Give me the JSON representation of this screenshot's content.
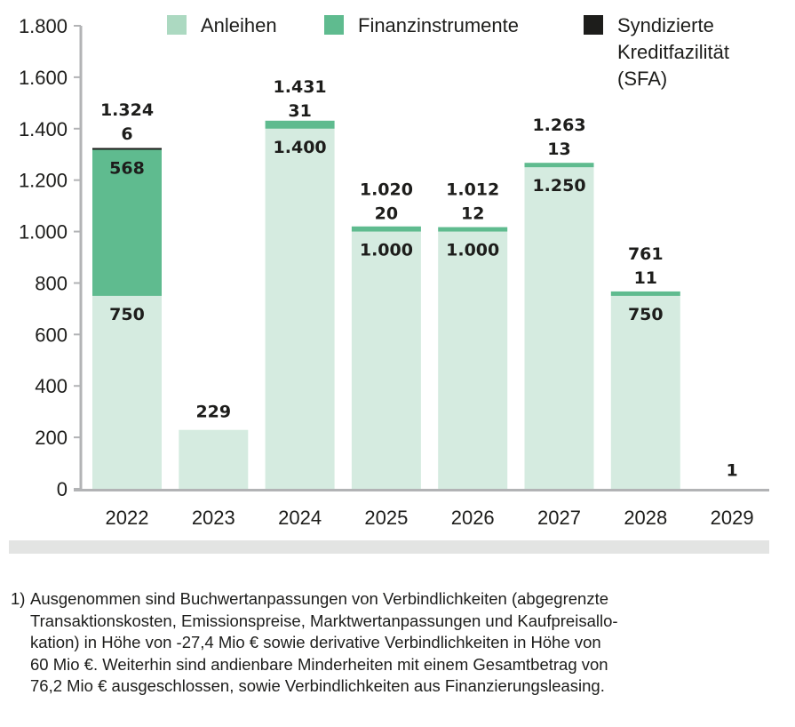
{
  "chart_data": {
    "type": "bar",
    "stacked": true,
    "title": "",
    "xlabel": "",
    "ylabel": "",
    "ylim": [
      0,
      1800
    ],
    "yticks": [
      0,
      200,
      400,
      600,
      800,
      1000,
      1200,
      1400,
      1600,
      1800
    ],
    "ytick_labels": [
      "0",
      "200",
      "400",
      "600",
      "800",
      "1.000",
      "1.200",
      "1.400",
      "1.600",
      "1.800"
    ],
    "grid": false,
    "legend_position": "top-right",
    "categories": [
      "2022",
      "2023",
      "2024",
      "2025",
      "2026",
      "2027",
      "2028",
      "2029"
    ],
    "series": [
      {
        "name": "Anleihen",
        "color": "#d5ebe0",
        "legend_color": "#acd9c1",
        "values": [
          750,
          229,
          1400,
          1000,
          1000,
          1250,
          750,
          0
        ],
        "labels": [
          "750",
          "",
          "1.400",
          "1.000",
          "1.000",
          "1.250",
          "750",
          ""
        ]
      },
      {
        "name": "Finanzinstrumente",
        "color": "#5fbb8f",
        "values": [
          568,
          0,
          31,
          20,
          12,
          13,
          11,
          0
        ],
        "labels": [
          "568",
          "",
          "31",
          "20",
          "12",
          "13",
          "11",
          ""
        ]
      },
      {
        "name": "Syndizierte Kreditfazilität (SFA)",
        "legend_lines": [
          "Syndizierte",
          "Kreditfazilität",
          "(SFA)"
        ],
        "color": "#1d1d1b",
        "values": [
          6,
          0,
          0,
          0,
          0,
          0,
          0,
          1
        ],
        "labels": [
          "6",
          "",
          "",
          "",
          "",
          "",
          "",
          ""
        ]
      }
    ],
    "totals": [
      1324,
      229,
      1431,
      1020,
      1012,
      1263,
      761,
      1
    ],
    "total_labels": [
      "1.324",
      "229",
      "1.431",
      "1.020",
      "1.012",
      "1.263",
      "761",
      "1"
    ]
  },
  "footnote": {
    "number": "1)",
    "lines": [
      "Ausgenommen sind Buchwertanpassungen von Verbindlichkeiten (abgegrenzte",
      "Transaktionskosten, Emissionspreise, Marktwertanpassungen und Kaufpreisallo-",
      "kation) in Höhe von -27,4 Mio € sowie derivative Verbindlichkeiten in Höhe von",
      "60 Mio €. Weiterhin sind andienbare Minderheiten mit einem Gesamtbetrag von",
      "76,2 Mio € ausgeschlossen, sowie Verbindlichkeiten aus Finanzierungsleasing."
    ]
  },
  "colors": {
    "axis": "#b2b3b5",
    "band": "#e3e4e3",
    "text": "#1d1d1b"
  }
}
